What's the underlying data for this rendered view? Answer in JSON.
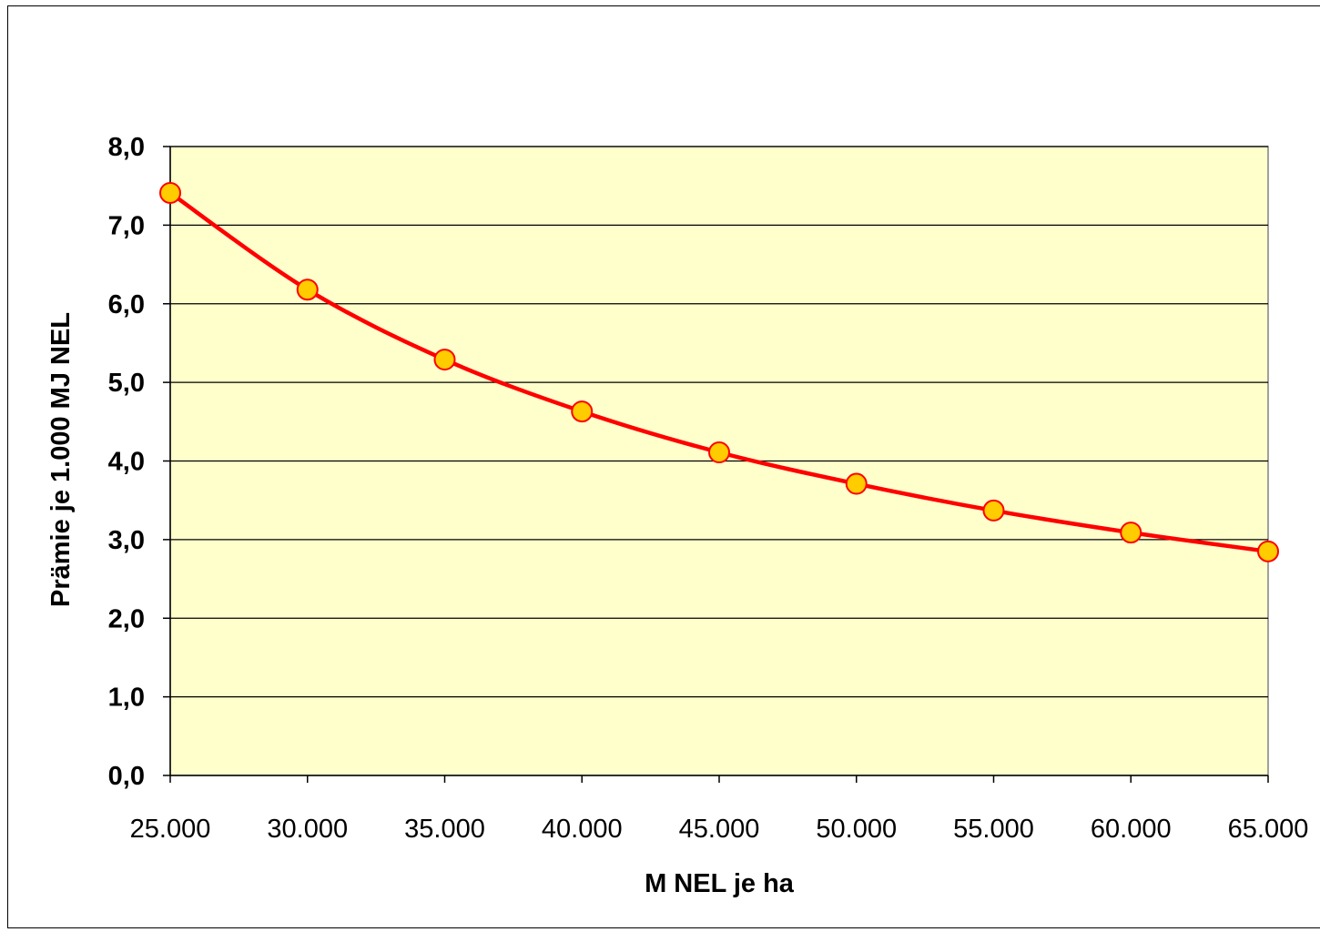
{
  "chart_data": {
    "type": "line",
    "title": "",
    "xlabel": "M NEL je ha",
    "ylabel": "Prämie je 1.000 MJ NEL",
    "x": [
      25000,
      30000,
      35000,
      40000,
      45000,
      50000,
      55000,
      60000,
      65000
    ],
    "x_tick_labels": [
      "25.000",
      "30.000",
      "35.000",
      "40.000",
      "45.000",
      "50.000",
      "55.000",
      "60.000",
      "65.000"
    ],
    "y_tick_labels": [
      "0,0",
      "1,0",
      "2,0",
      "3,0",
      "4,0",
      "5,0",
      "6,0",
      "7,0",
      "8,0"
    ],
    "xlim": [
      25000,
      65000
    ],
    "ylim": [
      0,
      8
    ],
    "y_ticks": [
      0,
      1,
      2,
      3,
      4,
      5,
      6,
      7,
      8
    ],
    "grid": "horizontal",
    "legend": "none",
    "series": [
      {
        "values": [
          7.41,
          6.18,
          5.29,
          4.63,
          4.11,
          3.71,
          3.37,
          3.09,
          2.85
        ],
        "line_color": "#ff0000",
        "marker_fill": "#ffcc00",
        "marker_stroke": "#ff0000"
      }
    ],
    "plot_background": "#ffffcc",
    "grid_color": "#000000"
  }
}
